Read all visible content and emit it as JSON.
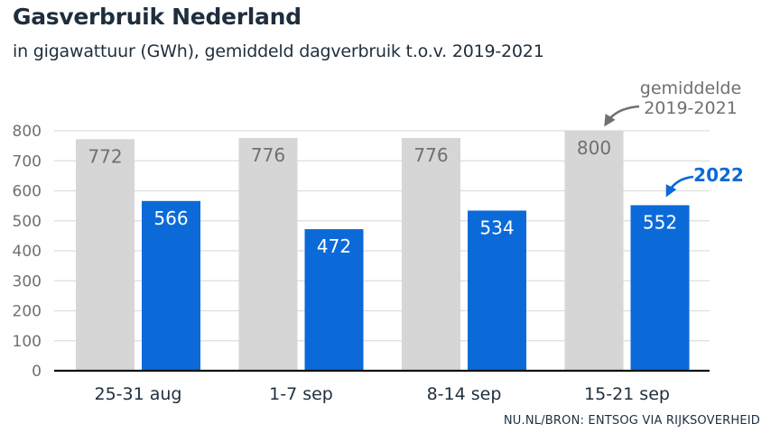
{
  "header": {
    "title": "Gasverbruik Nederland",
    "subtitle": "in gigawattuur (GWh), gemiddeld dagverbruik t.o.v. 2019-2021"
  },
  "footer": {
    "source": "NU.NL/BRON: ENTSOG VIA RIJKSOVERHEID"
  },
  "colors": {
    "reference": "#d6d6d6",
    "current": "#0b6ad8",
    "grid": "#dddddd",
    "axis": "#111111"
  },
  "chart_data": {
    "type": "bar",
    "title": "Gasverbruik Nederland",
    "subtitle": "in gigawattuur (GWh), gemiddeld dagverbruik t.o.v. 2019-2021",
    "categories": [
      "25-31 aug",
      "1-7 sep",
      "8-14 sep",
      "15-21 sep"
    ],
    "series": [
      {
        "name": "gemiddelde 2019-2021",
        "values": [
          772,
          776,
          776,
          800
        ],
        "color": "#d6d6d6"
      },
      {
        "name": "2022",
        "values": [
          566,
          472,
          534,
          552
        ],
        "color": "#0b6ad8"
      }
    ],
    "ylim": [
      0,
      800
    ],
    "yticks": [
      0,
      100,
      200,
      300,
      400,
      500,
      600,
      700,
      800
    ],
    "grid": true,
    "legend": "inline annotations (top-right)",
    "annotations": [
      {
        "series": "gemiddelde 2019-2021",
        "lines": [
          "gemiddelde",
          "2019-2021"
        ]
      },
      {
        "series": "2022",
        "lines": [
          "2022"
        ]
      }
    ]
  }
}
